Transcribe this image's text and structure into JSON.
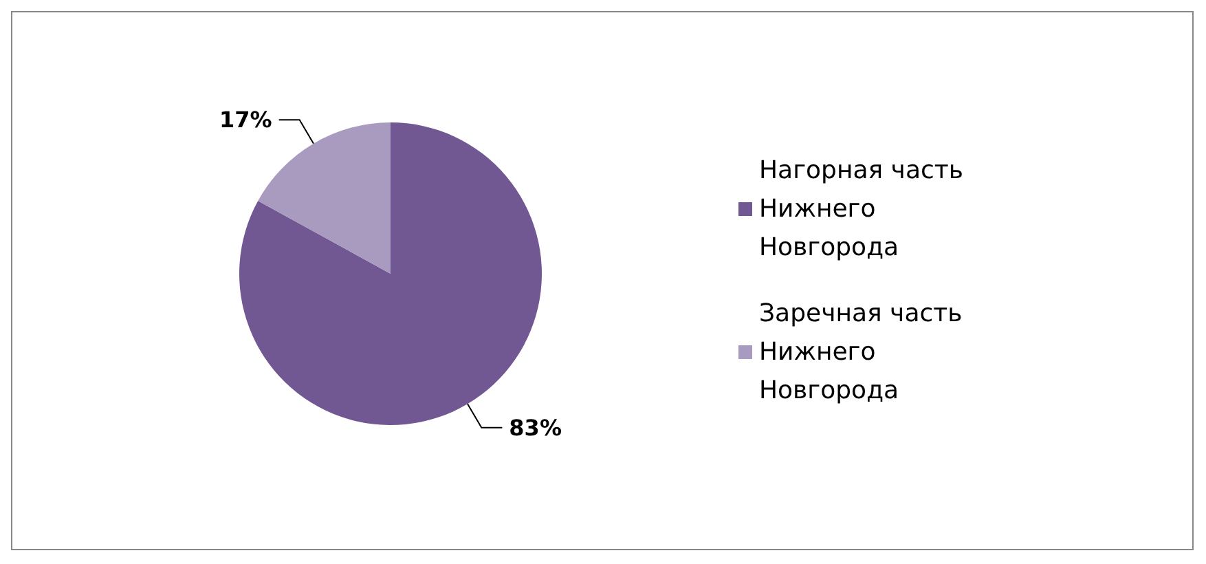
{
  "chart_data": {
    "type": "pie",
    "categories": [
      "Нагорная часть Нижнего Новгорода",
      "Заречная часть Нижнего Новгорода"
    ],
    "values": [
      83,
      17
    ],
    "colors": [
      "#725893",
      "#a99bbf"
    ],
    "value_labels": [
      "83%",
      "17%"
    ],
    "legend": "right"
  }
}
